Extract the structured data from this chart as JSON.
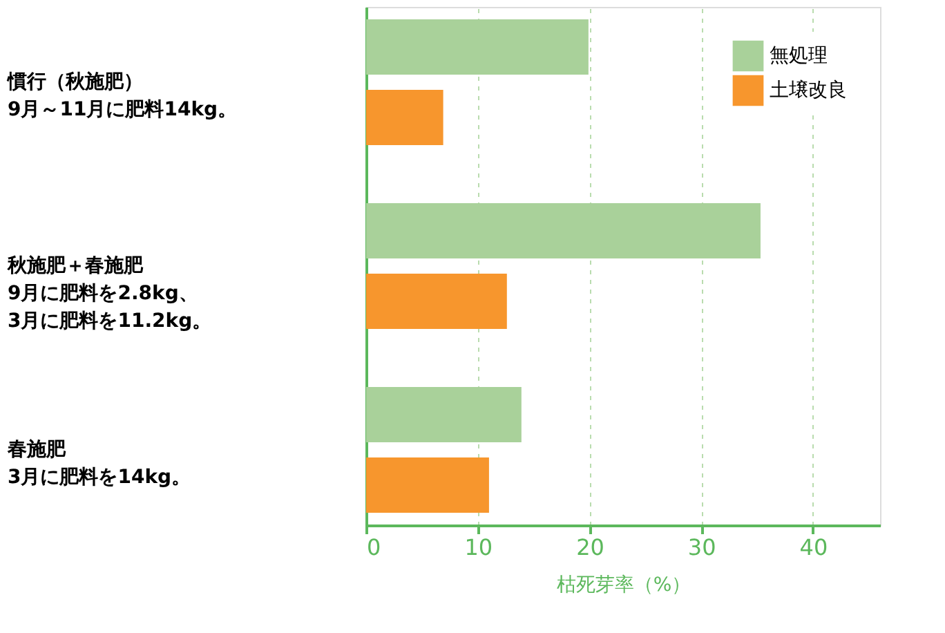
{
  "chart_data": {
    "type": "bar",
    "orientation": "horizontal",
    "xlabel": "枯死芽率（%）",
    "categories": [
      "慣行（秋施肥）\n9月～11月に肥料14kg。",
      "秋施肥＋春施肥\n9月に肥料を2.8kg、\n3月に肥料を11.2kg。",
      "春施肥\n3月に肥料を14kg。"
    ],
    "series": [
      {
        "name": "無処理",
        "color": "#a9d19a",
        "values": [
          19.9,
          35.3,
          13.9
        ]
      },
      {
        "name": "土壌改良",
        "color": "#f7962d",
        "values": [
          6.9,
          12.6,
          11.0
        ]
      }
    ],
    "xlim": [
      0,
      46
    ],
    "xticks": [
      0,
      10,
      20,
      30,
      40
    ],
    "grid": "x",
    "legend": "top right"
  }
}
